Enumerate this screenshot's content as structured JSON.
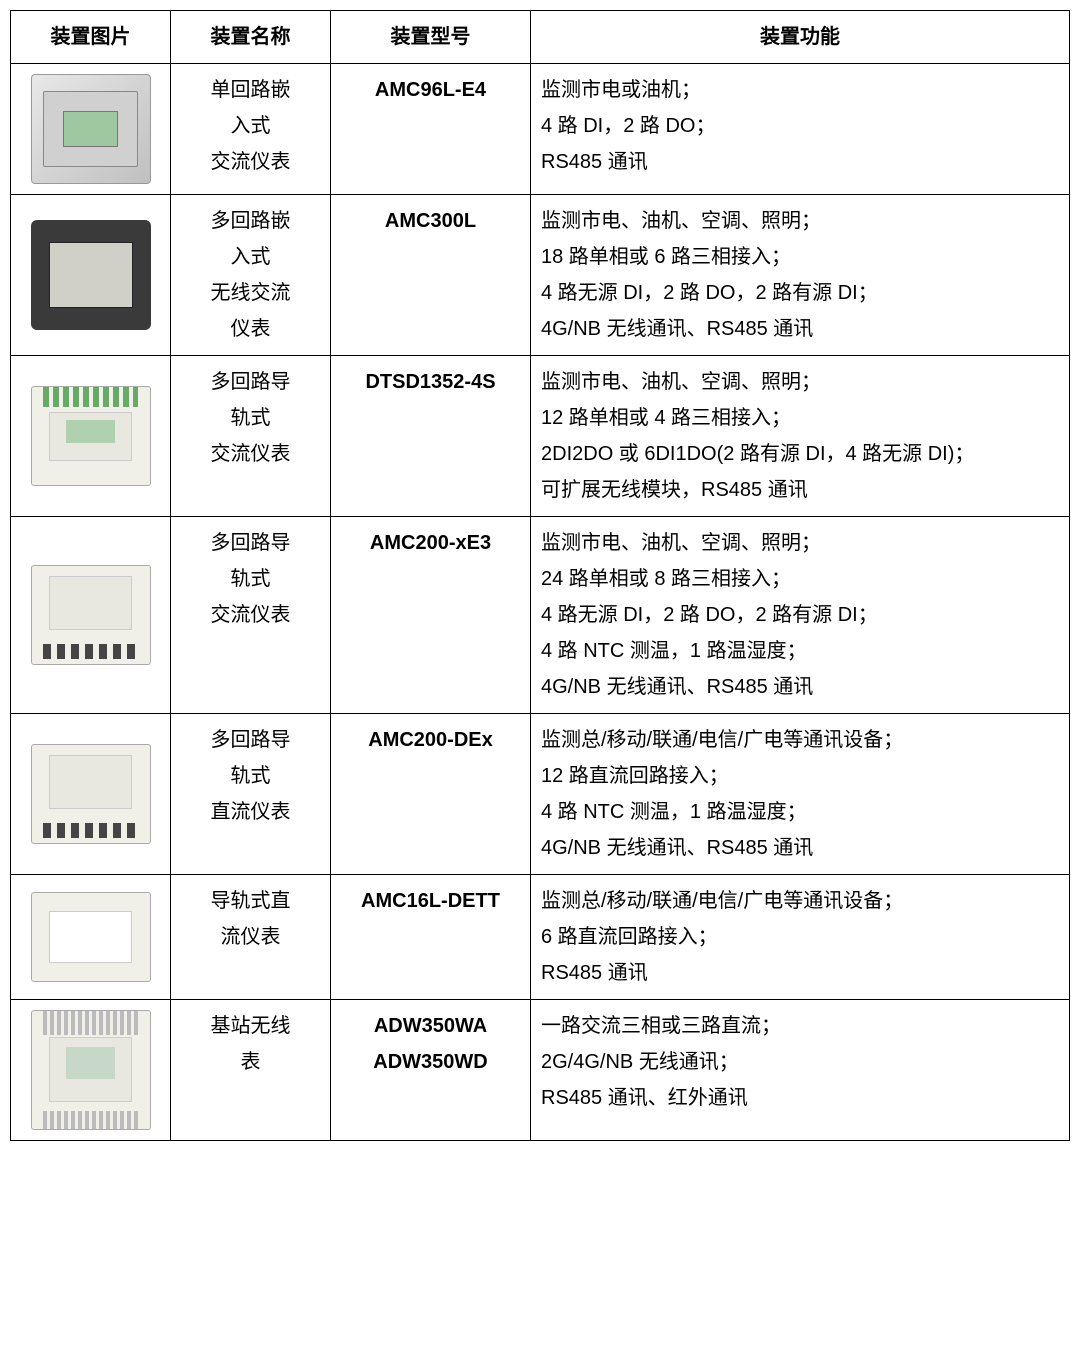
{
  "table": {
    "columns": [
      "装置图片",
      "装置名称",
      "装置型号",
      "装置功能"
    ],
    "col_widths": [
      "160px",
      "160px",
      "200px",
      "auto"
    ],
    "header_bg": "#ffffff",
    "border_color": "#000000",
    "font_size": 20,
    "rows": [
      {
        "image_type": "panel-meter",
        "name_lines": [
          "单回路嵌",
          "入式",
          "交流仪表"
        ],
        "model_lines": [
          "AMC96L-E4"
        ],
        "func_lines": [
          "监测市电或油机；",
          "4 路 DI，2 路 DO；",
          "RS485 通讯"
        ]
      },
      {
        "image_type": "panel-meter-dark",
        "name_lines": [
          "多回路嵌",
          "入式",
          "无线交流",
          "仪表"
        ],
        "model_lines": [
          "AMC300L"
        ],
        "func_lines": [
          "监测市电、油机、空调、照明；",
          "18 路单相或 6 路三相接入；",
          "4 路无源 DI，2 路 DO，2 路有源 DI；",
          "4G/NB 无线通讯、RS485 通讯"
        ]
      },
      {
        "image_type": "din-rail-green",
        "name_lines": [
          "多回路导",
          "轨式",
          "交流仪表"
        ],
        "model_lines": [
          "DTSD1352-4S"
        ],
        "func_lines": [
          "监测市电、油机、空调、照明；",
          "12 路单相或 4 路三相接入；",
          "2DI2DO 或 6DI1DO(2 路有源 DI，4 路无源 DI)；",
          "可扩展无线模块，RS485 通讯"
        ]
      },
      {
        "image_type": "din-rail-ports",
        "name_lines": [
          "多回路导",
          "轨式",
          "交流仪表"
        ],
        "model_lines": [
          "AMC200-xE3"
        ],
        "func_lines": [
          "监测市电、油机、空调、照明；",
          "24 路单相或 8 路三相接入；",
          "4 路无源 DI，2 路 DO，2 路有源 DI；",
          "4 路 NTC 测温，1 路温湿度；",
          "4G/NB 无线通讯、RS485 通讯"
        ]
      },
      {
        "image_type": "din-rail-ports",
        "name_lines": [
          "多回路导",
          "轨式",
          "直流仪表"
        ],
        "model_lines": [
          "AMC200-DEx"
        ],
        "func_lines": [
          "监测总/移动/联通/电信/广电等通讯设备；",
          "12 路直流回路接入；",
          "4 路 NTC 测温，1 路温湿度；",
          "4G/NB 无线通讯、RS485 通讯"
        ]
      },
      {
        "image_type": "din-rail-small",
        "name_lines": [
          "导轨式直",
          "流仪表"
        ],
        "model_lines": [
          "AMC16L-DETT"
        ],
        "func_lines": [
          "监测总/移动/联通/电信/广电等通讯设备；",
          "6 路直流回路接入；",
          "RS485 通讯"
        ]
      },
      {
        "image_type": "din-rail-terminal",
        "name_lines": [
          "基站无线",
          "表"
        ],
        "model_lines": [
          "ADW350WA",
          "ADW350WD"
        ],
        "func_lines": [
          "一路交流三相或三路直流；",
          "2G/4G/NB 无线通讯；",
          "RS485 通讯、红外通讯"
        ]
      }
    ]
  }
}
